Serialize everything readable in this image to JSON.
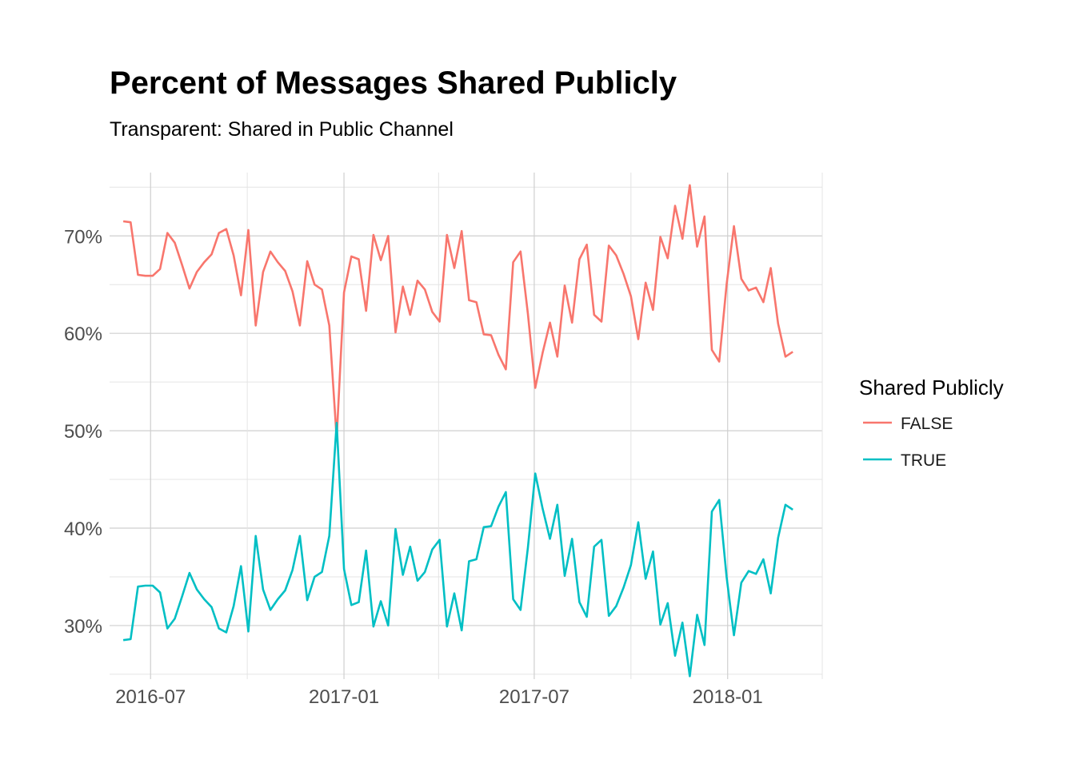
{
  "chart_data": {
    "type": "line",
    "title": "Percent of Messages Shared Publicly",
    "subtitle": "Transparent: Shared in Public Channel",
    "xlabel": "",
    "ylabel": "",
    "x_ticks": [
      "2016-07",
      "2017-01",
      "2017-07",
      "2018-01"
    ],
    "y_ticks": [
      "30%",
      "40%",
      "50%",
      "60%",
      "70%"
    ],
    "xlim": [
      "2016-05-23",
      "2018-04-01"
    ],
    "ylim": [
      24.5,
      76.5
    ],
    "grid": true,
    "legend": {
      "title": "Shared Publicly",
      "position": "right"
    },
    "x": [
      "2016-06-05",
      "2016-06-12",
      "2016-06-19",
      "2016-06-26",
      "2016-07-03",
      "2016-07-10",
      "2016-07-17",
      "2016-07-24",
      "2016-07-31",
      "2016-08-07",
      "2016-08-14",
      "2016-08-21",
      "2016-08-28",
      "2016-09-04",
      "2016-09-11",
      "2016-09-18",
      "2016-09-25",
      "2016-10-02",
      "2016-10-09",
      "2016-10-16",
      "2016-10-23",
      "2016-10-30",
      "2016-11-06",
      "2016-11-13",
      "2016-11-20",
      "2016-11-27",
      "2016-12-04",
      "2016-12-11",
      "2016-12-18",
      "2016-12-25",
      "2017-01-01",
      "2017-01-08",
      "2017-01-15",
      "2017-01-22",
      "2017-01-29",
      "2017-02-05",
      "2017-02-12",
      "2017-02-19",
      "2017-02-26",
      "2017-03-05",
      "2017-03-12",
      "2017-03-19",
      "2017-03-26",
      "2017-04-02",
      "2017-04-09",
      "2017-04-16",
      "2017-04-23",
      "2017-04-30",
      "2017-05-07",
      "2017-05-14",
      "2017-05-21",
      "2017-05-28",
      "2017-06-04",
      "2017-06-11",
      "2017-06-18",
      "2017-06-25",
      "2017-07-02",
      "2017-07-09",
      "2017-07-16",
      "2017-07-23",
      "2017-07-30",
      "2017-08-06",
      "2017-08-13",
      "2017-08-20",
      "2017-08-27",
      "2017-09-03",
      "2017-09-10",
      "2017-09-17",
      "2017-09-24",
      "2017-10-01",
      "2017-10-08",
      "2017-10-15",
      "2017-10-22",
      "2017-10-29",
      "2017-11-05",
      "2017-11-12",
      "2017-11-19",
      "2017-11-26",
      "2017-12-03",
      "2017-12-10",
      "2017-12-17",
      "2017-12-24",
      "2017-12-31",
      "2018-01-07",
      "2018-01-14",
      "2018-01-21",
      "2018-01-28",
      "2018-02-04",
      "2018-02-11",
      "2018-02-18",
      "2018-02-25",
      "2018-03-04"
    ],
    "series": [
      {
        "name": "FALSE",
        "color": "#F8766D",
        "values": [
          71.5,
          71.4,
          66.0,
          65.9,
          65.9,
          66.6,
          70.3,
          69.3,
          67.0,
          64.6,
          66.3,
          67.3,
          68.1,
          70.3,
          70.7,
          68.0,
          63.9,
          70.6,
          60.8,
          66.3,
          68.4,
          67.3,
          66.4,
          64.3,
          60.8,
          67.4,
          65.0,
          64.5,
          60.8,
          49.2,
          64.2,
          67.9,
          67.6,
          62.3,
          70.1,
          67.5,
          70.0,
          60.1,
          64.8,
          61.9,
          65.4,
          64.5,
          62.2,
          61.2,
          70.1,
          66.7,
          70.5,
          63.4,
          63.2,
          59.9,
          59.8,
          57.8,
          56.3,
          67.3,
          68.4,
          62.0,
          54.4,
          58.0,
          61.1,
          57.6,
          64.9,
          61.1,
          67.6,
          69.1,
          61.9,
          61.2,
          69.0,
          68.0,
          66.1,
          63.8,
          59.4,
          65.2,
          62.4,
          69.9,
          67.7,
          73.1,
          69.7,
          75.2,
          68.9,
          72.0,
          58.3,
          57.1,
          65.0,
          71.0,
          65.6,
          64.4,
          64.7,
          63.2,
          66.7,
          61.0,
          57.6,
          58.1
        ]
      },
      {
        "name": "TRUE",
        "color": "#00BFC4",
        "values": [
          28.5,
          28.6,
          34.0,
          34.1,
          34.1,
          33.4,
          29.7,
          30.7,
          33.0,
          35.4,
          33.7,
          32.7,
          31.9,
          29.7,
          29.3,
          32.0,
          36.1,
          29.4,
          39.2,
          33.7,
          31.6,
          32.7,
          33.6,
          35.7,
          39.2,
          32.6,
          35.0,
          35.5,
          39.2,
          50.8,
          35.8,
          32.1,
          32.4,
          37.7,
          29.9,
          32.5,
          30.0,
          39.9,
          35.2,
          38.1,
          34.6,
          35.5,
          37.8,
          38.8,
          29.9,
          33.3,
          29.5,
          36.6,
          36.8,
          40.1,
          40.2,
          42.2,
          43.7,
          32.7,
          31.6,
          38.0,
          45.6,
          42.0,
          38.9,
          42.4,
          35.1,
          38.9,
          32.4,
          30.9,
          38.1,
          38.8,
          31.0,
          32.0,
          33.9,
          36.2,
          40.6,
          34.8,
          37.6,
          30.1,
          32.3,
          26.9,
          30.3,
          24.8,
          31.1,
          28.0,
          41.7,
          42.9,
          35.0,
          29.0,
          34.4,
          35.6,
          35.3,
          36.8,
          33.3,
          39.0,
          42.4,
          41.9
        ]
      }
    ]
  }
}
